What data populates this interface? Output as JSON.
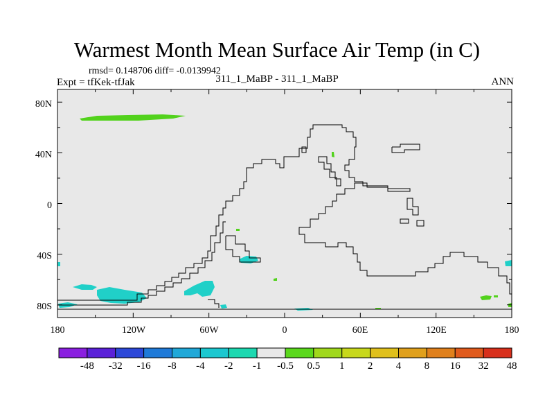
{
  "title": "Warmest Month Mean Surface Air Temp (in C)",
  "stats": "rmsd= 0.148706 diff= -0.0139942",
  "expt": "Expt = tfKek-tfJak",
  "subtitle": "311_1_MaBP - 311_1_MaBP",
  "period": "ANN",
  "map": {
    "background_color": "#e8e8e8",
    "lon_labels": [
      "180",
      "120W",
      "60W",
      "0",
      "60E",
      "120E",
      "180"
    ],
    "lat_labels": [
      "80N",
      "40N",
      "0",
      "40S",
      "80S"
    ]
  },
  "colorbar": {
    "colors": [
      "#8a1fe0",
      "#5a21d8",
      "#2c48d8",
      "#1f7ad8",
      "#20a8d8",
      "#1cc8d0",
      "#1cd8b0",
      "#e8e8e8",
      "#5ad81c",
      "#a0d81c",
      "#c8d81c",
      "#e0c01c",
      "#e0a01c",
      "#e0801c",
      "#e05a1c",
      "#d8301c"
    ],
    "labels": [
      "-48",
      "-32",
      "-16",
      "-8",
      "-4",
      "-2",
      "-1",
      "-0.5",
      "0.5",
      "1",
      "2",
      "4",
      "8",
      "16",
      "32",
      "48"
    ]
  },
  "legend_colors": {
    "cyan": "#20d0c8",
    "green": "#52d21c"
  }
}
